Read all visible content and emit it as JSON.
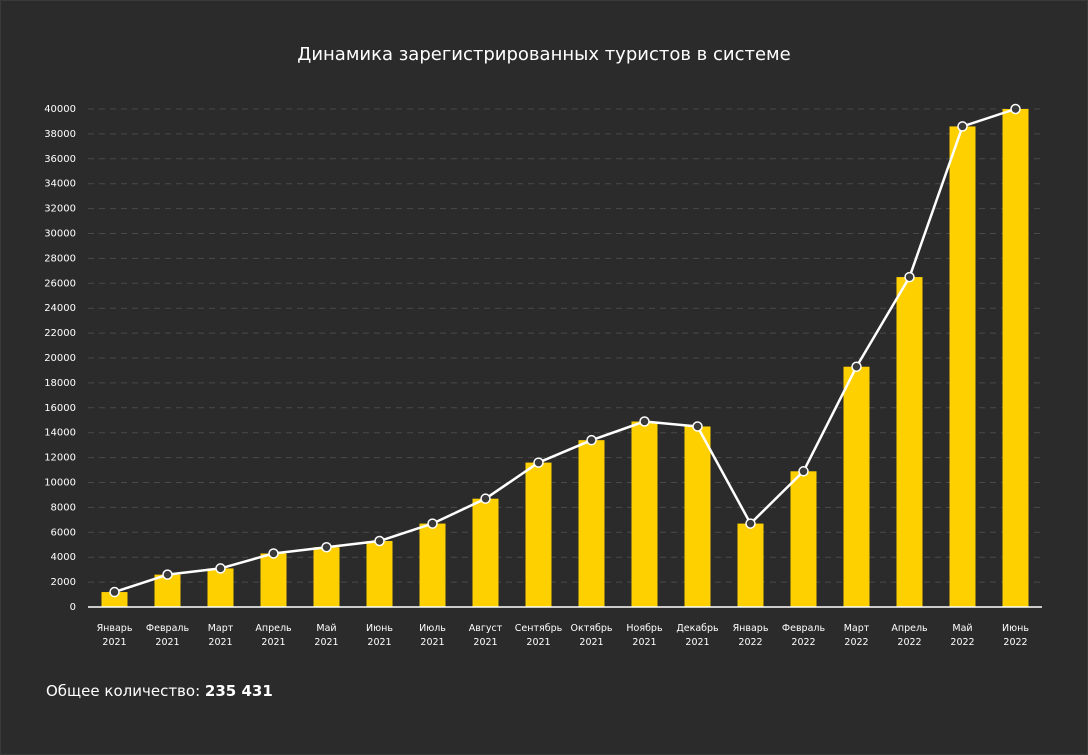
{
  "chart_data": {
    "type": "bar",
    "title": "Динамика зарегистрированных туристов в системе",
    "categories": [
      "Январь 2021",
      "Февраль 2021",
      "Март 2021",
      "Апрель 2021",
      "Май 2021",
      "Июнь 2021",
      "Июль 2021",
      "Август 2021",
      "Сентябрь 2021",
      "Октябрь 2021",
      "Ноябрь 2021",
      "Декабрь 2021",
      "Январь 2022",
      "Февраль 2022",
      "Март 2022",
      "Апрель 2022",
      "Май 2022",
      "Июнь 2022"
    ],
    "values": [
      1200,
      2600,
      3100,
      4300,
      4800,
      5300,
      6700,
      8700,
      11600,
      13400,
      14900,
      14500,
      6700,
      10900,
      19300,
      26500,
      38600,
      40000
    ],
    "color": "#ffd000",
    "line_overlay": true,
    "line_color": "#ffffff",
    "ylim": [
      0,
      40000
    ],
    "yticks": [
      0,
      2000,
      4000,
      6000,
      8000,
      10000,
      12000,
      14000,
      16000,
      18000,
      20000,
      22000,
      24000,
      26000,
      28000,
      30000,
      32000,
      34000,
      36000,
      38000,
      40000
    ],
    "grid": true,
    "total_label": "Общее количество:",
    "total": {
      "value": 235431,
      "label": "235 431"
    }
  }
}
